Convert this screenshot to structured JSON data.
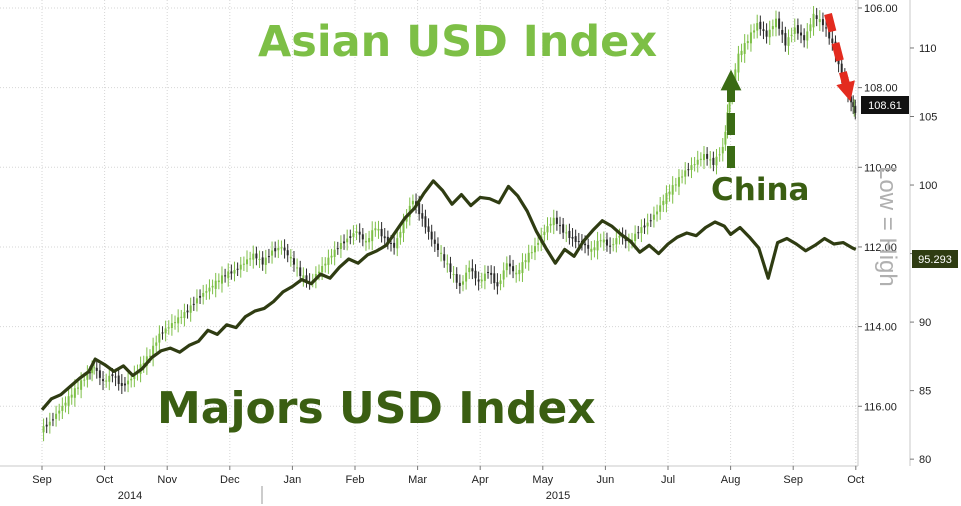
{
  "chart_data": {
    "type": "line",
    "title": "",
    "x_months": [
      "Sep",
      "Oct",
      "Nov",
      "Dec",
      "Jan",
      "Feb",
      "Mar",
      "Apr",
      "May",
      "Jun",
      "Jul",
      "Aug",
      "Sep",
      "Oct"
    ],
    "x_years": [
      "2014",
      "2015"
    ],
    "axes": {
      "left_inner": {
        "reversed": true,
        "ylim": [
          105.8,
          117.5
        ],
        "ticks": [
          "106.00",
          "108.00",
          "110.00",
          "112.00",
          "114.00",
          "116.00"
        ]
      },
      "right_outer": {
        "ylim": [
          79.5,
          113.5
        ],
        "ticks": [
          "80",
          "85",
          "90",
          "95",
          "100",
          "105",
          "110"
        ]
      }
    },
    "series": [
      {
        "name": "",
        "style": "candlestick",
        "axis": "left_inner",
        "up_color": "#7dbf46",
        "down_color": "#2a2a2a",
        "last_value": "108.61",
        "points": [
          [
            0.0,
            116.6
          ],
          [
            0.15,
            116.4
          ],
          [
            0.3,
            116.1
          ],
          [
            0.45,
            115.8
          ],
          [
            0.6,
            115.5
          ],
          [
            0.75,
            115.2
          ],
          [
            0.85,
            115.0
          ],
          [
            1.0,
            115.4
          ],
          [
            1.15,
            115.2
          ],
          [
            1.3,
            115.5
          ],
          [
            1.45,
            115.3
          ],
          [
            1.6,
            115.0
          ],
          [
            1.75,
            114.7
          ],
          [
            1.9,
            114.2
          ],
          [
            2.05,
            114.0
          ],
          [
            2.2,
            113.8
          ],
          [
            2.35,
            113.6
          ],
          [
            2.5,
            113.3
          ],
          [
            2.65,
            113.1
          ],
          [
            2.8,
            112.9
          ],
          [
            2.95,
            112.7
          ],
          [
            3.1,
            112.6
          ],
          [
            3.25,
            112.4
          ],
          [
            3.4,
            112.2
          ],
          [
            3.55,
            112.4
          ],
          [
            3.7,
            112.1
          ],
          [
            3.85,
            112.0
          ],
          [
            4.0,
            112.3
          ],
          [
            4.15,
            112.7
          ],
          [
            4.3,
            112.9
          ],
          [
            4.45,
            112.6
          ],
          [
            4.6,
            112.3
          ],
          [
            4.75,
            112.0
          ],
          [
            4.9,
            111.8
          ],
          [
            5.05,
            111.6
          ],
          [
            5.2,
            111.9
          ],
          [
            5.35,
            111.5
          ],
          [
            5.5,
            111.8
          ],
          [
            5.65,
            112.0
          ],
          [
            5.8,
            111.4
          ],
          [
            5.95,
            110.8
          ],
          [
            6.1,
            111.3
          ],
          [
            6.25,
            111.8
          ],
          [
            6.4,
            112.2
          ],
          [
            6.55,
            112.6
          ],
          [
            6.7,
            113.0
          ],
          [
            6.85,
            112.5
          ],
          [
            7.0,
            112.9
          ],
          [
            7.15,
            112.6
          ],
          [
            7.3,
            113.0
          ],
          [
            7.45,
            112.4
          ],
          [
            7.6,
            112.7
          ],
          [
            7.75,
            112.3
          ],
          [
            7.9,
            112.0
          ],
          [
            8.05,
            111.6
          ],
          [
            8.2,
            111.3
          ],
          [
            8.35,
            111.6
          ],
          [
            8.5,
            111.8
          ],
          [
            8.65,
            111.9
          ],
          [
            8.8,
            112.1
          ],
          [
            8.95,
            111.8
          ],
          [
            9.1,
            112.0
          ],
          [
            9.25,
            111.7
          ],
          [
            9.4,
            111.9
          ],
          [
            9.55,
            111.6
          ],
          [
            9.7,
            111.4
          ],
          [
            9.85,
            111.1
          ],
          [
            10.0,
            110.7
          ],
          [
            10.15,
            110.4
          ],
          [
            10.3,
            110.1
          ],
          [
            10.45,
            109.9
          ],
          [
            10.6,
            109.7
          ],
          [
            10.75,
            109.9
          ],
          [
            10.9,
            109.5
          ],
          [
            11.0,
            108.2
          ],
          [
            11.15,
            107.2
          ],
          [
            11.3,
            106.8
          ],
          [
            11.45,
            106.4
          ],
          [
            11.6,
            106.7
          ],
          [
            11.75,
            106.3
          ],
          [
            11.9,
            106.9
          ],
          [
            12.05,
            106.5
          ],
          [
            12.2,
            106.8
          ],
          [
            12.35,
            106.2
          ],
          [
            12.5,
            106.4
          ],
          [
            12.65,
            106.9
          ],
          [
            12.8,
            107.7
          ],
          [
            12.95,
            108.4
          ],
          [
            13.0,
            108.6
          ]
        ]
      },
      {
        "name": "",
        "style": "line",
        "axis": "right_outer",
        "color": "#2f3c12",
        "last_value": "95.293",
        "points": [
          [
            0.0,
            83.6
          ],
          [
            0.15,
            84.4
          ],
          [
            0.3,
            84.7
          ],
          [
            0.45,
            85.3
          ],
          [
            0.6,
            85.9
          ],
          [
            0.75,
            86.4
          ],
          [
            0.85,
            87.3
          ],
          [
            1.0,
            86.9
          ],
          [
            1.15,
            86.4
          ],
          [
            1.3,
            86.8
          ],
          [
            1.45,
            86.1
          ],
          [
            1.6,
            86.6
          ],
          [
            1.75,
            87.4
          ],
          [
            1.9,
            87.9
          ],
          [
            2.05,
            88.1
          ],
          [
            2.2,
            87.8
          ],
          [
            2.35,
            88.3
          ],
          [
            2.5,
            88.6
          ],
          [
            2.65,
            89.4
          ],
          [
            2.8,
            89.1
          ],
          [
            2.95,
            89.8
          ],
          [
            3.1,
            89.6
          ],
          [
            3.25,
            90.4
          ],
          [
            3.4,
            90.8
          ],
          [
            3.55,
            91.0
          ],
          [
            3.7,
            91.5
          ],
          [
            3.85,
            92.2
          ],
          [
            4.0,
            92.6
          ],
          [
            4.15,
            93.1
          ],
          [
            4.3,
            92.8
          ],
          [
            4.45,
            93.5
          ],
          [
            4.6,
            93.2
          ],
          [
            4.75,
            94.0
          ],
          [
            4.9,
            94.6
          ],
          [
            5.05,
            94.3
          ],
          [
            5.2,
            94.9
          ],
          [
            5.35,
            95.2
          ],
          [
            5.5,
            95.6
          ],
          [
            5.65,
            96.6
          ],
          [
            5.8,
            97.6
          ],
          [
            5.95,
            98.3
          ],
          [
            6.1,
            99.4
          ],
          [
            6.25,
            100.3
          ],
          [
            6.4,
            99.6
          ],
          [
            6.55,
            98.6
          ],
          [
            6.7,
            99.3
          ],
          [
            6.85,
            98.5
          ],
          [
            7.0,
            99.1
          ],
          [
            7.15,
            99.0
          ],
          [
            7.3,
            98.7
          ],
          [
            7.45,
            99.9
          ],
          [
            7.6,
            99.2
          ],
          [
            7.75,
            98.1
          ],
          [
            7.9,
            96.6
          ],
          [
            8.05,
            95.4
          ],
          [
            8.2,
            94.3
          ],
          [
            8.35,
            95.3
          ],
          [
            8.5,
            94.8
          ],
          [
            8.65,
            95.9
          ],
          [
            8.8,
            96.7
          ],
          [
            8.95,
            97.4
          ],
          [
            9.1,
            97.0
          ],
          [
            9.25,
            96.4
          ],
          [
            9.4,
            95.9
          ],
          [
            9.55,
            95.1
          ],
          [
            9.7,
            95.6
          ],
          [
            9.85,
            95.0
          ],
          [
            10.0,
            95.7
          ],
          [
            10.15,
            96.2
          ],
          [
            10.3,
            96.5
          ],
          [
            10.45,
            96.3
          ],
          [
            10.6,
            96.9
          ],
          [
            10.75,
            97.3
          ],
          [
            10.9,
            97.0
          ],
          [
            11.0,
            96.4
          ],
          [
            11.15,
            96.9
          ],
          [
            11.3,
            96.2
          ],
          [
            11.45,
            95.4
          ],
          [
            11.6,
            93.2
          ],
          [
            11.75,
            95.8
          ],
          [
            11.9,
            96.1
          ],
          [
            12.05,
            95.7
          ],
          [
            12.2,
            95.2
          ],
          [
            12.35,
            95.6
          ],
          [
            12.5,
            96.1
          ],
          [
            12.65,
            95.7
          ],
          [
            12.8,
            95.8
          ],
          [
            12.95,
            95.4
          ],
          [
            13.0,
            95.3
          ]
        ]
      }
    ],
    "annotations": [
      {
        "text": "Asian USD Index",
        "color": "#7dbf46"
      },
      {
        "text": "Majors USD Index",
        "color": "#3a5e12"
      },
      {
        "text": "China",
        "color": "#3a5e12"
      },
      {
        "text": "Low = High",
        "color": "#b0b0b0"
      }
    ],
    "arrows": [
      {
        "direction": "up",
        "color": "#3a6b14",
        "style": "dashed"
      },
      {
        "direction": "down-right",
        "color": "#e32b1f",
        "style": "dashed"
      }
    ]
  }
}
